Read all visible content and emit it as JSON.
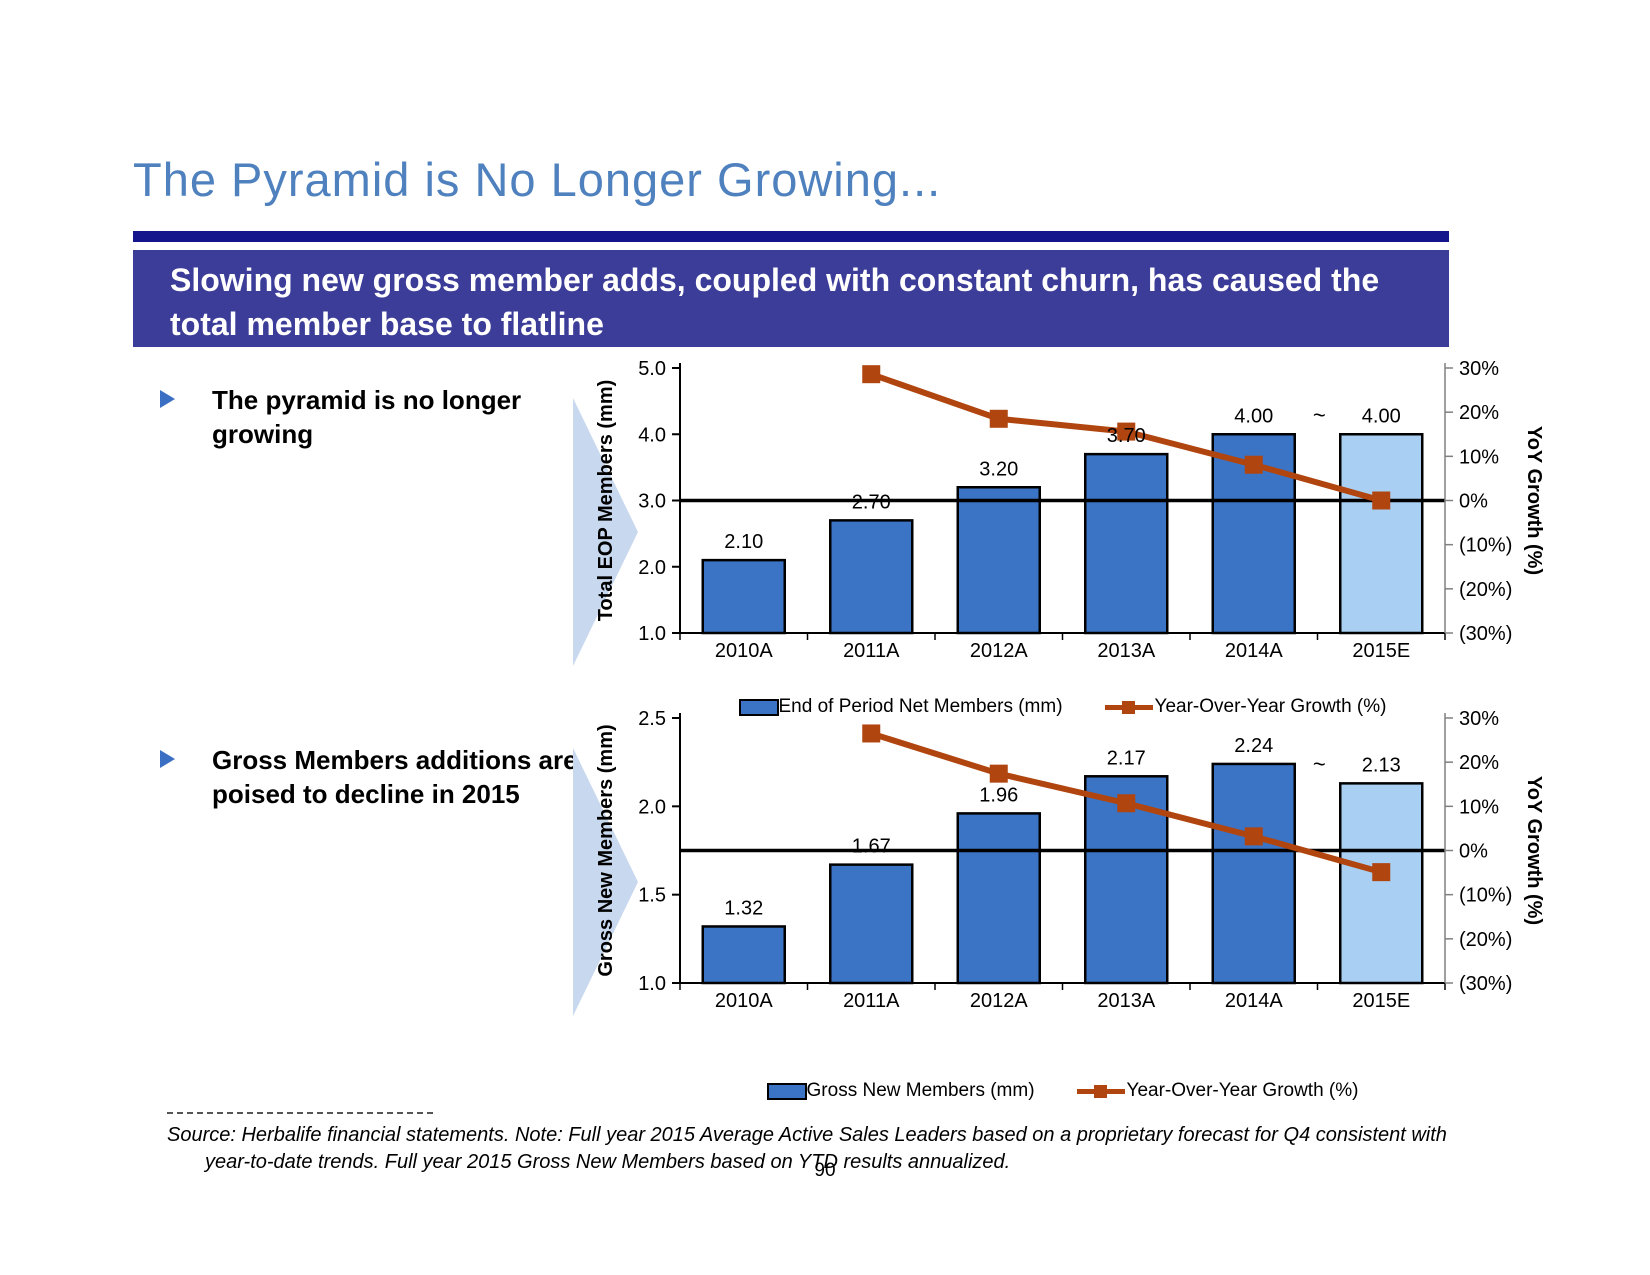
{
  "slide": {
    "title": "The Pyramid is No Longer Growing...",
    "page_number": "90"
  },
  "banner": {
    "text": "Slowing new gross member adds, coupled with constant churn, has caused the total member base to flatline"
  },
  "bullets": [
    "The pyramid is no longer growing",
    "Gross Members additions are poised to decline in 2015"
  ],
  "footnote": "Source: Herbalife financial statements.  Note: Full year 2015 Average Active Sales Leaders based on a proprietary forecast for Q4 consistent with year-to-date trends. Full year 2015 Gross New Members based on YTD results annualized.",
  "colors": {
    "title_blue": "#4E81BE",
    "rule_navy": "#16168C",
    "banner_indigo": "#3C3C99",
    "bar_blue": "#3B74C4",
    "bar_light_blue": "#A9CFF2",
    "line_orange": "#B0450F",
    "axis_black": "#000000",
    "axis2_gray": "#808080",
    "arrow_light_blue": "#C8D8EE"
  },
  "chart_data": [
    {
      "type": "bar",
      "combo": "bar+line",
      "categories": [
        "2010A",
        "2011A",
        "2012A",
        "2013A",
        "2014A",
        "2015E"
      ],
      "bar_series": {
        "name": "End of Period Net Members (mm)",
        "values": [
          2.1,
          2.7,
          3.2,
          3.7,
          4.0,
          4.0
        ],
        "labels": [
          "2.10",
          "2.70",
          "3.20",
          "3.70",
          "4.00",
          "4.00"
        ],
        "estimate_index": 5,
        "estimate_prefix": "~"
      },
      "line_series": {
        "name": "Year-Over-Year Growth (%)",
        "values": [
          null,
          28.6,
          18.5,
          15.6,
          8.1,
          0.0
        ]
      },
      "ylabel": "Total EOP Members (mm)",
      "y2label": "YoY Growth (%)",
      "ylim": [
        1.0,
        5.0
      ],
      "yticks": [
        {
          "v": 5.0,
          "label": "5.0"
        },
        {
          "v": 4.0,
          "label": "4.0"
        },
        {
          "v": 3.0,
          "label": "3.0"
        },
        {
          "v": 2.0,
          "label": "2.0"
        },
        {
          "v": 1.0,
          "label": "1.0"
        }
      ],
      "y2lim": [
        -30,
        30
      ],
      "y2ticks": [
        {
          "v": 30,
          "label": "30%"
        },
        {
          "v": 20,
          "label": "20%"
        },
        {
          "v": 10,
          "label": "10%"
        },
        {
          "v": 0,
          "label": "0%"
        },
        {
          "v": -10,
          "label": "(10%)"
        },
        {
          "v": -20,
          "label": "(20%)"
        },
        {
          "v": -30,
          "label": "(30%)"
        }
      ],
      "zero_line_y2": 0,
      "grid": "off",
      "legend_position": "bottom"
    },
    {
      "type": "bar",
      "combo": "bar+line",
      "categories": [
        "2010A",
        "2011A",
        "2012A",
        "2013A",
        "2014A",
        "2015E"
      ],
      "bar_series": {
        "name": "Gross New Members (mm)",
        "values": [
          1.32,
          1.67,
          1.96,
          2.17,
          2.24,
          2.13
        ],
        "labels": [
          "1.32",
          "1.67",
          "1.96",
          "2.17",
          "2.24",
          "2.13"
        ],
        "estimate_index": 5,
        "estimate_prefix": "~"
      },
      "line_series": {
        "name": "Year-Over-Year Growth (%)",
        "values": [
          null,
          26.5,
          17.4,
          10.7,
          3.2,
          -4.9
        ]
      },
      "ylabel": "Gross New Members (mm)",
      "y2label": "YoY Growth (%)",
      "ylim": [
        1.0,
        2.5
      ],
      "yticks": [
        {
          "v": 2.5,
          "label": "2.5"
        },
        {
          "v": 2.0,
          "label": "2.0"
        },
        {
          "v": 1.5,
          "label": "1.5"
        },
        {
          "v": 1.0,
          "label": "1.0"
        }
      ],
      "y2lim": [
        -30,
        30
      ],
      "y2ticks": [
        {
          "v": 30,
          "label": "30%"
        },
        {
          "v": 20,
          "label": "20%"
        },
        {
          "v": 10,
          "label": "10%"
        },
        {
          "v": 0,
          "label": "0%"
        },
        {
          "v": -10,
          "label": "(10%)"
        },
        {
          "v": -20,
          "label": "(20%)"
        },
        {
          "v": -30,
          "label": "(30%)"
        }
      ],
      "zero_line_y2": 0,
      "grid": "off",
      "legend_position": "bottom"
    }
  ]
}
